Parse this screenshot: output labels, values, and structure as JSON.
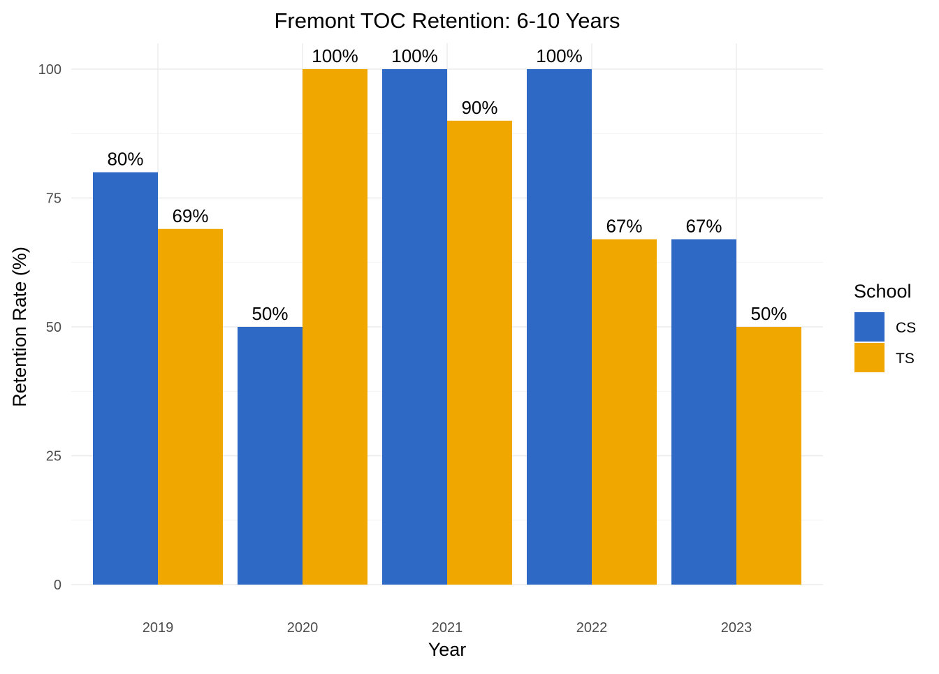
{
  "chart_data": {
    "type": "bar",
    "title": "Fremont TOC Retention: 6-10 Years",
    "xlabel": "Year",
    "ylabel": "Retention Rate (%)",
    "categories": [
      "2019",
      "2020",
      "2021",
      "2022",
      "2023"
    ],
    "series": [
      {
        "name": "CS",
        "color": "#2F69C6",
        "values": [
          80,
          50,
          100,
          100,
          67
        ],
        "labels": [
          "80%",
          "50%",
          "100%",
          "100%",
          "67%"
        ]
      },
      {
        "name": "TS",
        "color": "#F0A800",
        "values": [
          69,
          100,
          90,
          67,
          50
        ],
        "labels": [
          "69%",
          "100%",
          "90%",
          "67%",
          "50%"
        ]
      }
    ],
    "ylim": [
      0,
      100
    ],
    "yticks": [
      0,
      25,
      50,
      75,
      100
    ],
    "ytick_labels": [
      "0",
      "25",
      "50",
      "75",
      "100"
    ],
    "grid": true,
    "legend": {
      "title": "School",
      "position": "right"
    }
  }
}
